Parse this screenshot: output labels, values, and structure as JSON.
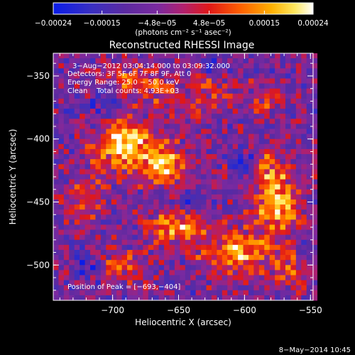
{
  "chart_data": {
    "type": "heatmap",
    "title": "Reconstructed RHESSI Image",
    "xlabel": "Heliocentric X (arcsec)",
    "ylabel": "Heliocentric Y (arcsec)",
    "xlim": [
      -745,
      -548
    ],
    "ylim": [
      -528,
      -332
    ],
    "x_ticks": [
      -700,
      -650,
      -600,
      -550
    ],
    "x_tick_labels": [
      "−700",
      "−650",
      "−600",
      "−550"
    ],
    "y_ticks": [
      -350,
      -400,
      -450,
      -500
    ],
    "y_tick_labels": [
      "−350",
      "−400",
      "−450",
      "−500"
    ],
    "colorbar": {
      "min": -0.00024,
      "max": 0.00024,
      "ticks": [
        -0.00024,
        -0.00015,
        -4.8e-05,
        4.8e-05,
        0.00015,
        0.00024
      ],
      "tick_labels": [
        "−0.00024",
        "−0.00015",
        "−4.8e−05",
        "4.8e−05",
        "0.00015",
        "0.00024"
      ],
      "unit_label": "(photons cm⁻² s⁻¹ asec⁻²)",
      "colors": [
        "#0a1ce8",
        "#3a2fc0",
        "#5c2aa0",
        "#7a2aa0",
        "#b0206e",
        "#e01818",
        "#ff6000",
        "#ffb000",
        "#ffe860",
        "#ffffff"
      ]
    },
    "annotations": {
      "time_range": "3−Aug−2012 03:04:14.000 to 03:09:32.000",
      "detectors": "Detectors: 3F 5F 6F 7F 8F 9F, Att 0",
      "energy_range": "Energy Range: 25.0 − 50.0 keV",
      "algorithm": "Clean    Total counts: 4.93E+03",
      "peak": "Position of Peak = [−693,−404]"
    },
    "peak": {
      "x": -693,
      "y": -404
    },
    "sources": [
      {
        "x": -693,
        "y": -404,
        "amp": 1.0,
        "sx": 14,
        "sy": 12
      },
      {
        "x": -662,
        "y": -420,
        "amp": 0.75,
        "sx": 13,
        "sy": 12
      },
      {
        "x": -685,
        "y": -355,
        "amp": 0.45,
        "sx": 14,
        "sy": 9
      },
      {
        "x": -630,
        "y": -362,
        "amp": 0.45,
        "sx": 10,
        "sy": 12
      },
      {
        "x": -660,
        "y": -365,
        "amp": 0.35,
        "sx": 10,
        "sy": 10
      },
      {
        "x": -650,
        "y": -470,
        "amp": 0.65,
        "sx": 16,
        "sy": 10
      },
      {
        "x": -690,
        "y": -500,
        "amp": 0.45,
        "sx": 12,
        "sy": 8
      },
      {
        "x": -605,
        "y": -490,
        "amp": 0.75,
        "sx": 18,
        "sy": 12
      },
      {
        "x": -575,
        "y": -455,
        "amp": 0.8,
        "sx": 12,
        "sy": 14
      },
      {
        "x": -580,
        "y": -425,
        "amp": 0.55,
        "sx": 10,
        "sy": 12
      },
      {
        "x": -565,
        "y": -505,
        "amp": 0.5,
        "sx": 10,
        "sy": 10
      },
      {
        "x": -585,
        "y": -370,
        "amp": 0.35,
        "sx": 10,
        "sy": 9
      },
      {
        "x": -720,
        "y": -445,
        "amp": 0.35,
        "sx": 10,
        "sy": 16
      }
    ]
  },
  "footer": {
    "date": "8−May−2014 10:45"
  }
}
